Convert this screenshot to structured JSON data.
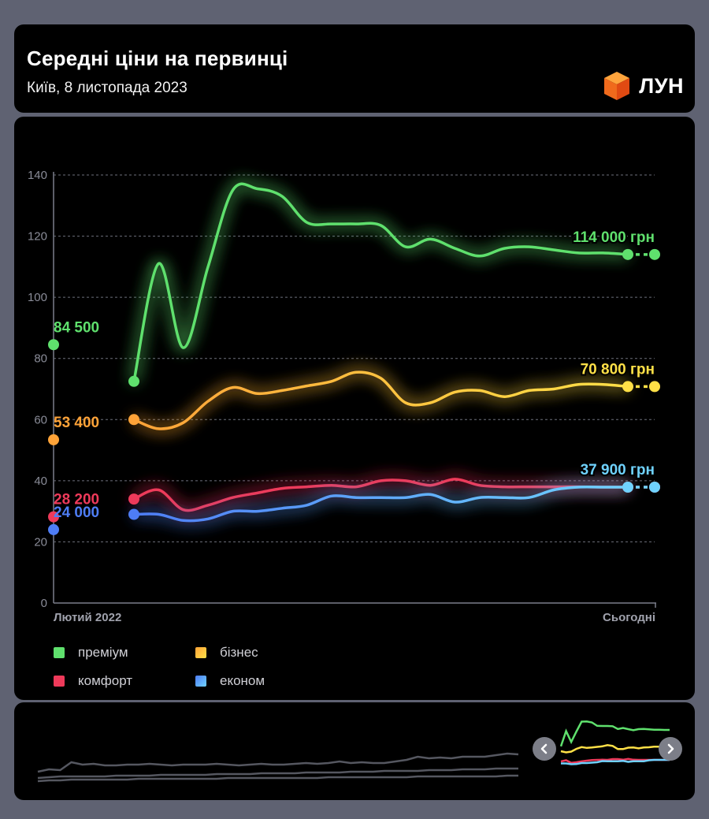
{
  "header": {
    "title": "Середні ціни на первинці",
    "subtitle": "Київ, 8 листопада 2023",
    "logo_text": "ЛУН",
    "logo_icon": "orange-cube-icon"
  },
  "chart_data": {
    "type": "line",
    "title": "Середні ціни на первинці",
    "subtitle": "Київ, 8 листопада 2023",
    "xlabel": "",
    "ylabel": "",
    "ylim": [
      0,
      140
    ],
    "yticks": [
      0,
      20,
      40,
      60,
      80,
      100,
      120,
      140
    ],
    "x_start_label": "Лютий 2022",
    "x_end_label": "Сьогодні",
    "x": [
      0,
      1,
      2,
      3,
      4,
      5,
      6,
      7,
      8,
      9,
      10,
      11,
      12,
      13,
      14,
      15,
      16,
      17,
      18,
      19,
      20,
      21
    ],
    "grid": true,
    "series": [
      {
        "name": "преміум",
        "color": "#5fe06d",
        "start_value": 84.5,
        "start_label": "84 500",
        "end_label": "114 000 грн",
        "values": [
          72.5,
          111,
          83.5,
          110,
          135,
          135.5,
          133,
          124.5,
          124,
          124,
          123.5,
          116.5,
          119,
          116,
          113.5,
          116,
          116.5,
          115.5,
          114.5,
          114.5,
          114,
          114
        ]
      },
      {
        "name": "бізнес",
        "color": "#ffa338",
        "end_color": "#ffe047",
        "start_value": 53.4,
        "start_label": "53 400",
        "end_label": "70 800 грн",
        "values": [
          60,
          57,
          59,
          66,
          70.5,
          68.5,
          69.5,
          71,
          72.5,
          75.5,
          73.5,
          65.5,
          65.5,
          69,
          69.5,
          67.5,
          69.5,
          70,
          71.5,
          71.5,
          70.8,
          70.8
        ]
      },
      {
        "name": "комфорт",
        "color": "#ee3a5a",
        "start_value": 28.2,
        "start_label": "28 200",
        "end_label": "",
        "values": [
          34,
          37,
          30.5,
          32,
          34.5,
          36,
          37.5,
          38,
          38.5,
          38,
          40,
          40,
          38.5,
          40.5,
          38.5,
          38,
          38,
          38,
          38,
          37.9,
          37.9,
          37.9
        ]
      },
      {
        "name": "економ",
        "color": "#4e7df5",
        "end_color": "#6fd2ff",
        "start_value": 24.0,
        "start_label": "24 000",
        "end_label": "37 900 грн",
        "values": [
          29,
          29,
          27,
          27.5,
          30,
          30,
          31,
          32,
          35,
          34.5,
          34.5,
          34.5,
          35.5,
          33,
          34.5,
          34.5,
          34.5,
          37,
          37.9,
          37.9,
          37.9,
          37.9
        ]
      }
    ],
    "legend": [
      "преміум",
      "бізнес",
      "комфорт",
      "економ"
    ],
    "legend_position": "bottom-left"
  },
  "navigator": {
    "prev_icon": "chevron-left-icon",
    "next_icon": "chevron-right-icon",
    "history": [
      [
        33,
        36,
        35,
        45,
        42,
        43,
        41,
        41,
        42,
        42,
        43,
        42,
        41,
        42,
        42,
        42,
        43,
        42,
        41,
        42,
        43,
        42,
        42,
        43,
        44,
        43,
        44,
        46,
        44,
        45,
        44,
        44,
        46,
        48,
        52,
        50,
        51,
        50,
        52,
        52,
        52,
        54,
        56,
        55
      ],
      [
        25,
        26,
        27,
        27,
        27,
        27,
        27,
        28,
        28,
        28,
        28,
        29,
        29,
        29,
        29,
        29,
        30,
        30,
        30,
        30,
        31,
        31,
        31,
        31,
        32,
        32,
        32,
        32,
        33,
        33,
        33,
        34,
        34,
        34,
        34,
        35,
        35,
        35,
        36,
        36,
        36,
        37,
        37,
        37
      ],
      [
        21,
        22,
        22,
        23,
        23,
        23,
        23,
        23,
        23,
        24,
        24,
        24,
        24,
        24,
        24,
        24,
        24,
        25,
        25,
        25,
        25,
        25,
        25,
        25,
        25,
        25,
        26,
        26,
        26,
        26,
        26,
        26,
        26,
        26,
        27,
        27,
        27,
        27,
        27,
        27,
        27,
        27,
        28,
        28
      ]
    ]
  }
}
